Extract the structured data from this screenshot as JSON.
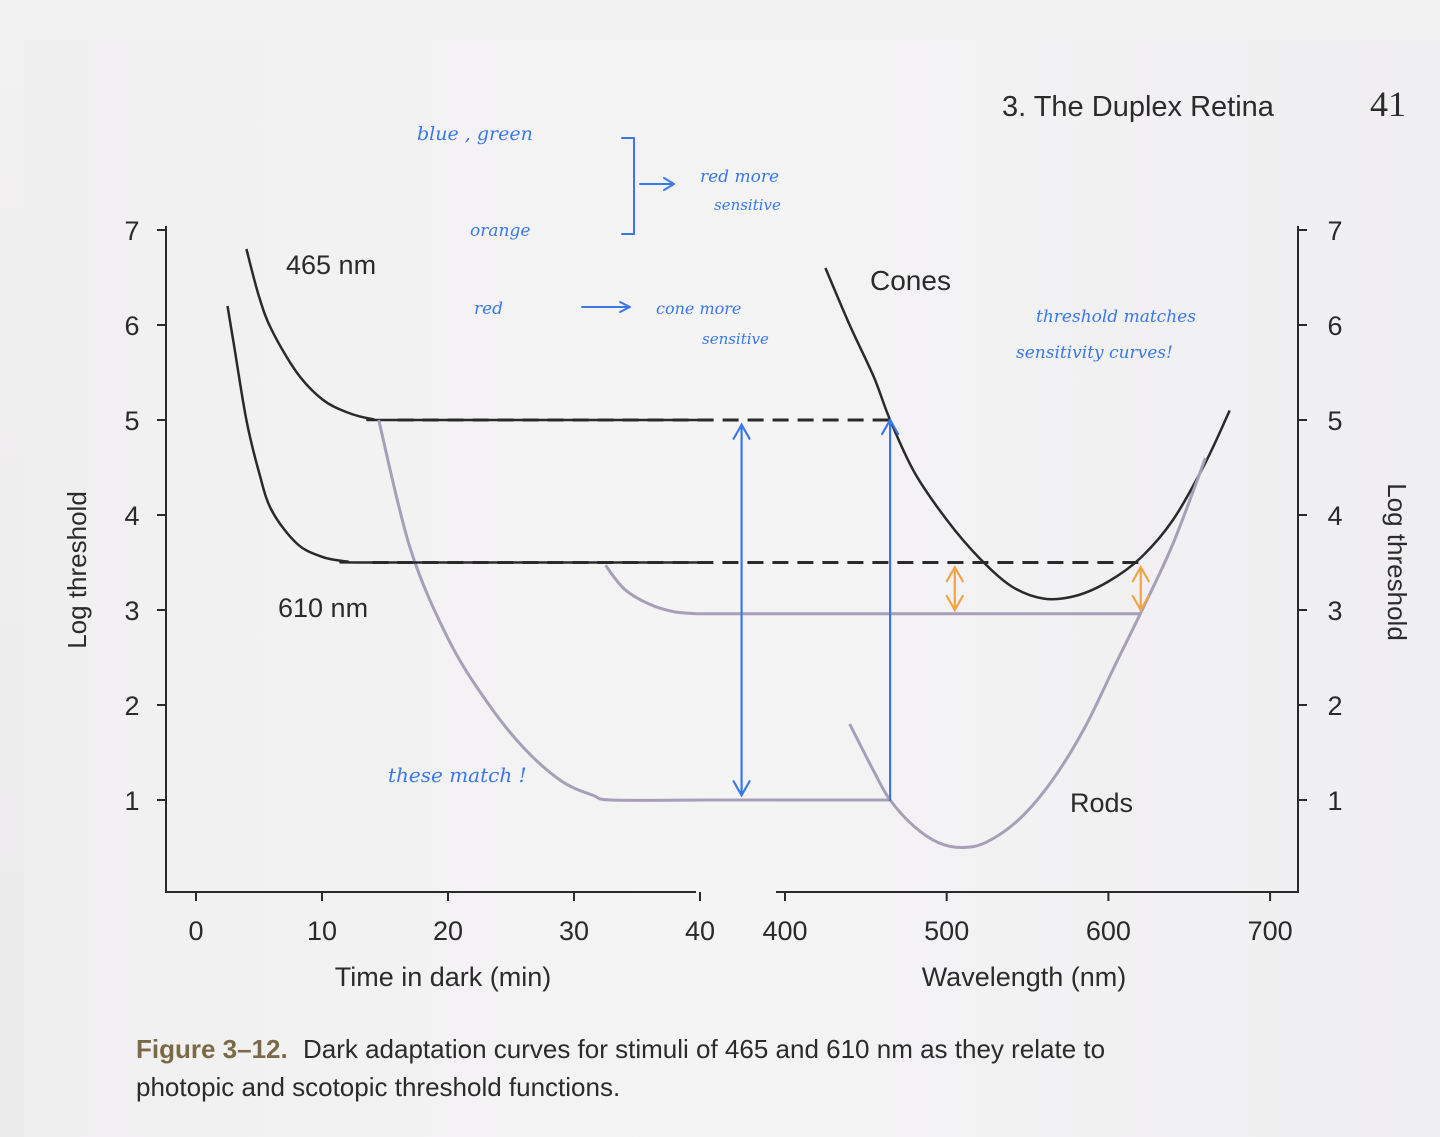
{
  "header": {
    "chapter_title": "3. The Duplex Retina",
    "page_number": "41"
  },
  "caption": {
    "label": "Figure 3–12.",
    "line1": "Dark adaptation curves for stimuli of 465 and 610 nm as they relate to",
    "line2": "photopic and scotopic threshold functions."
  },
  "handwritten_notes": {
    "blue_green": "blue , green",
    "orange": "orange",
    "red_more_sensitive_1": "red more",
    "red_more_sensitive_2": "sensitive",
    "red": "red",
    "cone_more_1": "cone more",
    "cone_more_2": "sensitive",
    "threshold_matches_1": "threshold matches",
    "threshold_matches_2": "sensitivity curves!",
    "these_match": "these match !"
  },
  "colors": {
    "ink": "#2a2a2a",
    "rod": "#a79fb8",
    "handwriting_blue": "#3a78e8",
    "handwriting_orange": "#f0a446"
  },
  "chart_data": [
    {
      "type": "line",
      "xlabel": "Time in dark (min)",
      "ylabel": "Log threshold",
      "xlim": [
        0,
        40
      ],
      "ylim": [
        0,
        7
      ],
      "x_ticks": [
        0,
        10,
        20,
        30,
        40
      ],
      "y_ticks": [
        1,
        2,
        3,
        4,
        5,
        6,
        7
      ],
      "series": [
        {
          "name": "465 nm",
          "role": "cone",
          "x": [
            4,
            5,
            6,
            8,
            10,
            12,
            14,
            16,
            40
          ],
          "y": [
            6.8,
            6.3,
            5.95,
            5.5,
            5.22,
            5.08,
            5.01,
            5.0,
            5.0
          ]
        },
        {
          "role": "rod",
          "x": [
            14.5,
            17,
            20,
            23,
            26,
            29,
            31.5,
            33,
            40
          ],
          "y": [
            5.0,
            3.65,
            2.7,
            2.05,
            1.55,
            1.2,
            1.05,
            1.0,
            1.0
          ]
        },
        {
          "name": "610 nm",
          "role": "cone",
          "x": [
            2.5,
            3,
            4,
            5,
            6,
            8,
            10,
            12,
            14,
            40
          ],
          "y": [
            6.2,
            5.8,
            5.0,
            4.45,
            4.05,
            3.7,
            3.56,
            3.51,
            3.5,
            3.5
          ]
        },
        {
          "role": "rod",
          "x": [
            32.5,
            34,
            36,
            38,
            40
          ],
          "y": [
            3.47,
            3.22,
            3.06,
            2.98,
            2.96
          ]
        }
      ]
    },
    {
      "type": "line",
      "xlabel": "Wavelength (nm)",
      "ylabel": "Log threshold",
      "xlim": [
        380,
        720
      ],
      "ylim": [
        0,
        7
      ],
      "x_ticks": [
        400,
        500,
        600,
        700
      ],
      "y_ticks": [
        1,
        2,
        3,
        4,
        5,
        6,
        7
      ],
      "series": [
        {
          "name": "Cones",
          "x": [
            425,
            440,
            455,
            465,
            480,
            500,
            520,
            540,
            560,
            580,
            600,
            620,
            640,
            660,
            675
          ],
          "y": [
            6.6,
            6.0,
            5.45,
            5.0,
            4.45,
            3.95,
            3.55,
            3.25,
            3.12,
            3.15,
            3.3,
            3.55,
            3.95,
            4.55,
            5.1
          ]
        },
        {
          "name": "Rods",
          "x": [
            440,
            455,
            465,
            480,
            495,
            510,
            525,
            545,
            565,
            585,
            605,
            620,
            640,
            660
          ],
          "y": [
            1.8,
            1.3,
            1.0,
            0.72,
            0.55,
            0.5,
            0.56,
            0.8,
            1.2,
            1.75,
            2.45,
            2.97,
            3.7,
            4.6
          ]
        }
      ],
      "reference_lines": [
        {
          "y": 5.0,
          "style": "dashed",
          "from_time_min": 16,
          "to_wavelength_nm": 465
        },
        {
          "y": 3.5,
          "style": "dashed",
          "from_time_min": 14,
          "to_wavelength_nm": 622
        }
      ],
      "rod_plateaus": [
        {
          "y": 1.0,
          "to_wavelength_nm": 465
        },
        {
          "y": 2.96,
          "to_wavelength_nm": 620
        }
      ]
    }
  ]
}
